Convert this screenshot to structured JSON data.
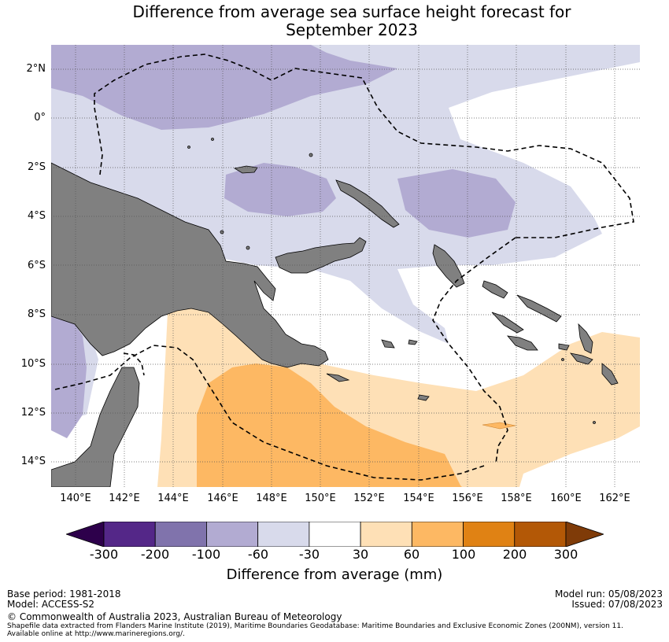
{
  "title": {
    "line1": "Difference from average sea surface height forecast for",
    "line2": "September 2023"
  },
  "map": {
    "lat_labels": [
      "2°N",
      "0°",
      "2°S",
      "4°S",
      "6°S",
      "8°S",
      "10°S",
      "12°S",
      "14°S"
    ],
    "lon_labels": [
      "140°E",
      "142°E",
      "144°E",
      "146°E",
      "148°E",
      "150°E",
      "152°E",
      "154°E",
      "156°E",
      "158°E",
      "160°E",
      "162°E"
    ],
    "land_color": "#808080",
    "boundary_style": "dashed-black",
    "extent": {
      "lon_min": 139,
      "lon_max": 163,
      "lat_min": -15,
      "lat_max": 3
    }
  },
  "colorbar": {
    "ticks": [
      "-300",
      "-200",
      "-100",
      "-60",
      "-30",
      "30",
      "60",
      "100",
      "200",
      "300"
    ],
    "colors": [
      "#2d004b",
      "#542788",
      "#8073ac",
      "#b2abd2",
      "#d8daeb",
      "#ffffff",
      "#fee0b6",
      "#fdb863",
      "#e08214",
      "#b35806",
      "#7f3b08"
    ],
    "label": "Difference from average (mm)"
  },
  "footer": {
    "base_period": "Base period: 1981-2018",
    "model": "Model: ACCESS-S2",
    "model_run": "Model run: 05/08/2023",
    "issued": "Issued: 07/08/2023",
    "copyright": "© Commonwealth of Australia 2023, Australian Bureau of Meteorology",
    "shapefile_line1": "Shapefile data extracted from Flanders Marine Institute (2019), Maritime Boundaries Geodatabase: Maritime Boundaries and Exclusive Economic Zones (200NM), version 11.",
    "shapefile_line2": "Available online at http://www.marineregions.org/."
  }
}
